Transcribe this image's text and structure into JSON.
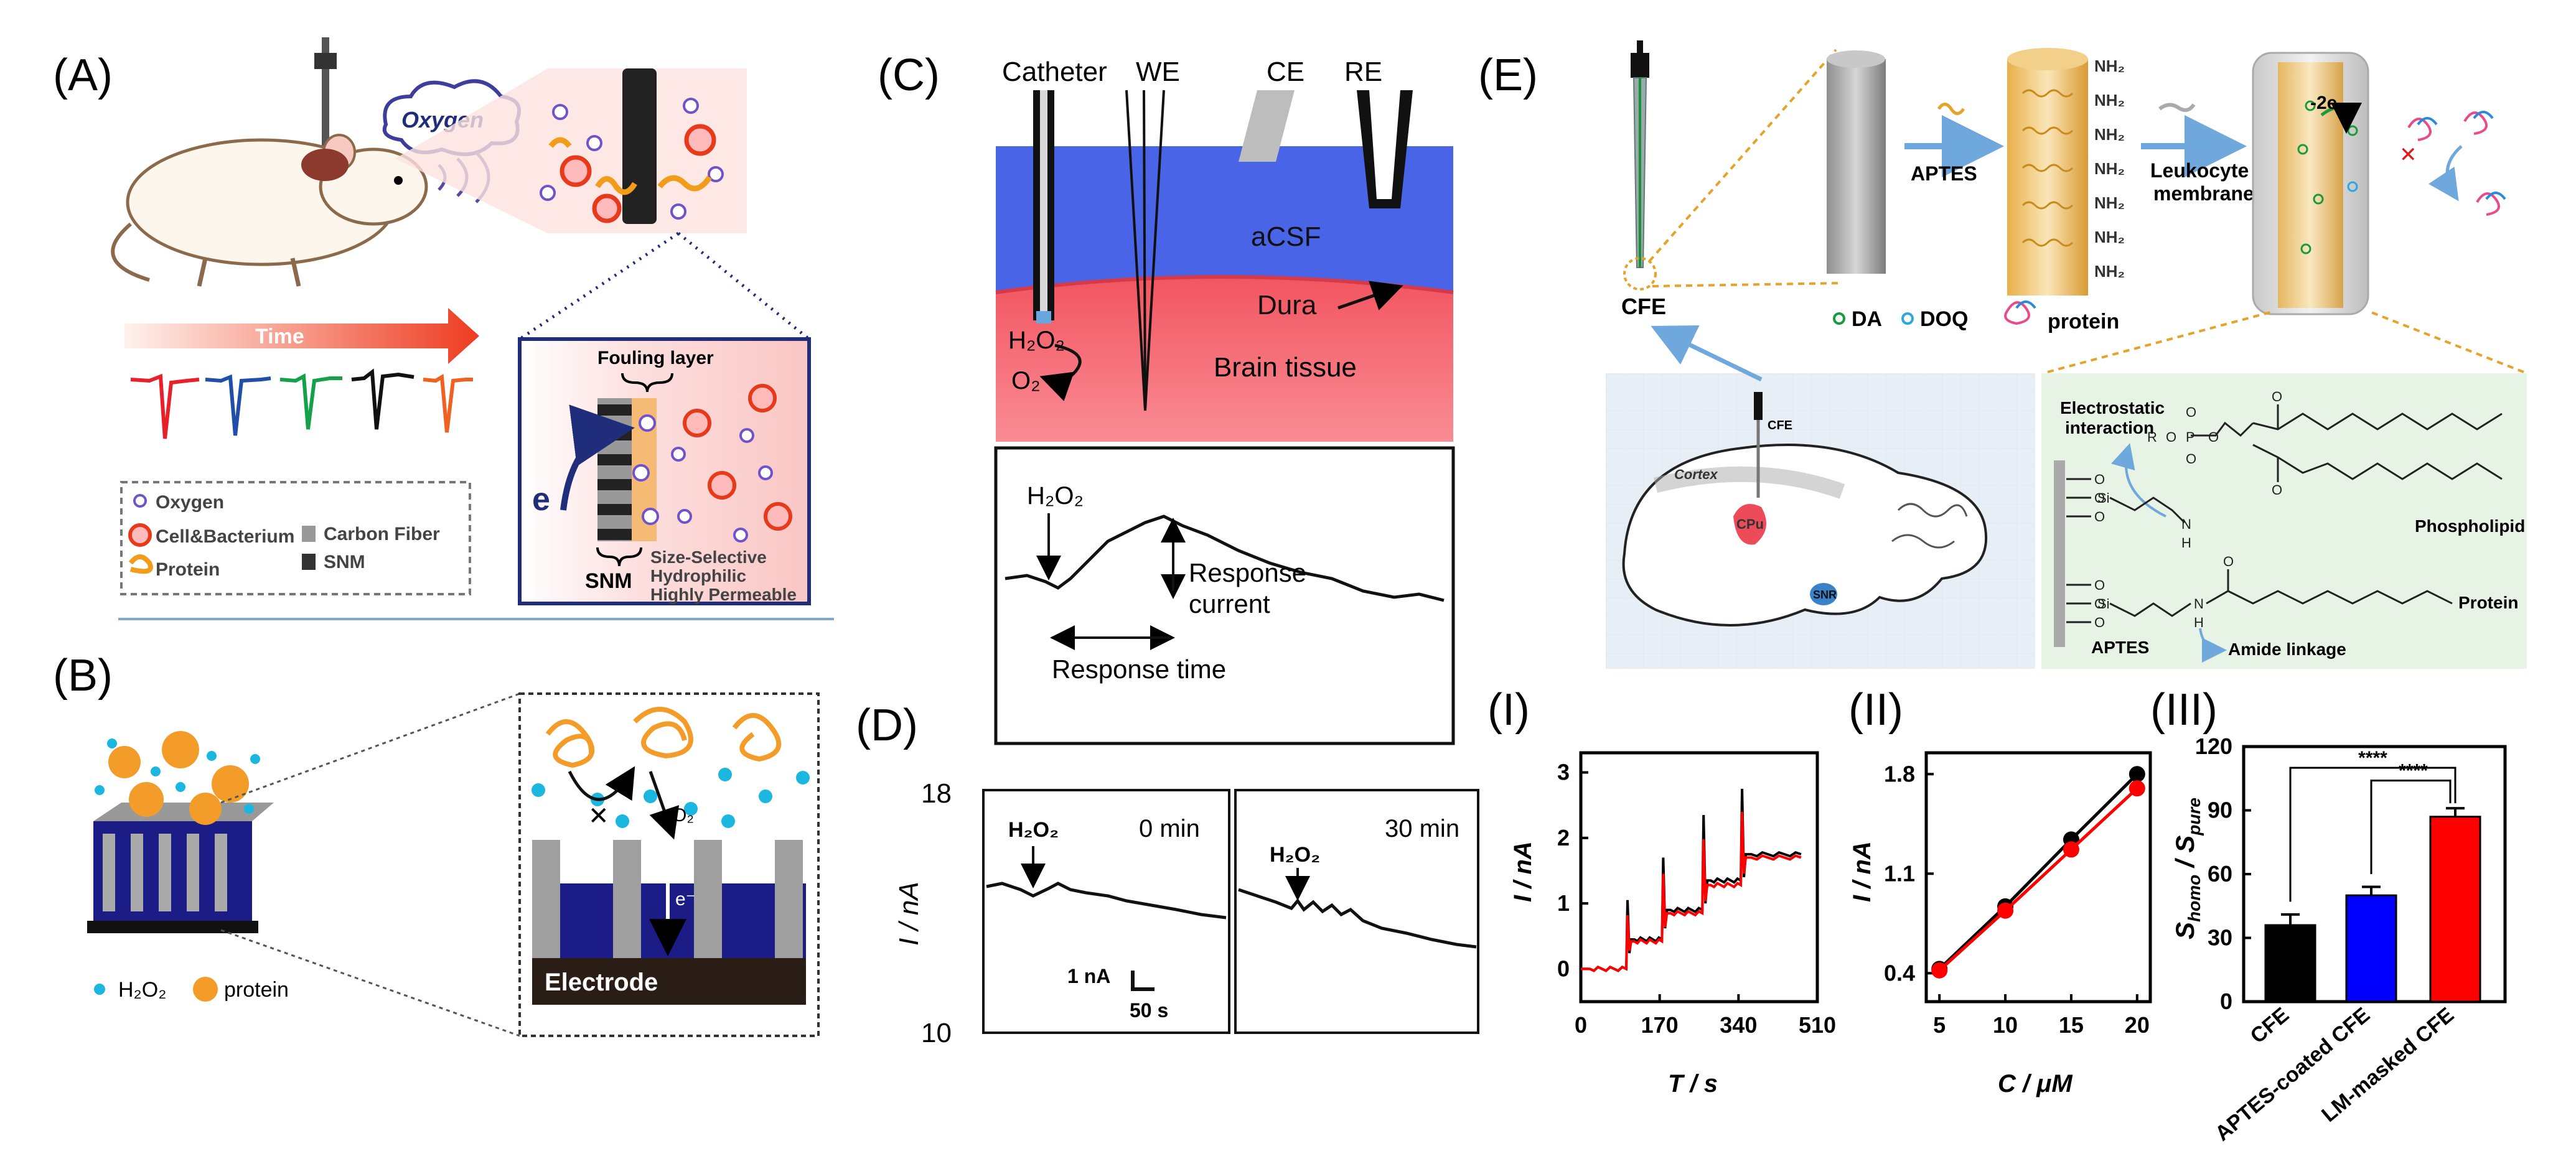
{
  "panels": {
    "A": {
      "label": "(A)",
      "oxygen": "Oxygen",
      "time": "Time",
      "legend": {
        "oxygen": "Oxygen",
        "cell": "Cell&Bacterium",
        "protein": "Protein",
        "carbon_fiber": "Carbon Fiber",
        "snm": "SNM"
      },
      "inset": {
        "fouling": "Fouling layer",
        "electron": "e",
        "snm": "SNM",
        "props": [
          "Size-Selective",
          "Hydrophilic",
          "Highly Permeable"
        ]
      }
    },
    "B": {
      "label": "(B)",
      "legend": {
        "h2o2": "H₂O₂",
        "protein": "protein"
      },
      "inset": {
        "o2": "O₂",
        "electron": "e⁻",
        "electrode": "Electrode"
      }
    },
    "C": {
      "label": "(C)",
      "schematic": {
        "catheter": "Catheter",
        "we": "WE",
        "ce": "CE",
        "re": "RE",
        "acsf": "aCSF",
        "dura": "Dura",
        "h2o2": "H₂O₂",
        "o2": "O₂",
        "brain": "Brain tissue"
      },
      "trace": {
        "h2o2": "H₂O₂",
        "response_current_1": "Response",
        "response_current_2": "current",
        "response_time": "Response time"
      }
    },
    "D": {
      "label": "(D)",
      "ylabel": "I / nA",
      "y_top": "18",
      "y_bottom": "10",
      "left": {
        "time": "0 min",
        "h2o2": "H₂O₂"
      },
      "right": {
        "time": "30 min",
        "h2o2": "H₂O₂"
      },
      "scale_current": "1 nA",
      "scale_time": "50 s"
    },
    "E": {
      "label": "(E)",
      "cfe": "CFE",
      "aptes": "APTES",
      "leukocyte_1": "Leukocyte",
      "leukocyte_2": "membrane",
      "da": "DA",
      "doq": "DOQ",
      "protein": "protein",
      "nh2": "NH₂",
      "minus2e": "-2e",
      "brain": {
        "cfe": "CFE",
        "cortex": "Cortex",
        "cpu": "CPu",
        "snr": "SNR"
      },
      "chem": {
        "electrostatic_1": "Electrostatic",
        "electrostatic_2": "interaction",
        "phospholipid": "Phospholipid",
        "protein": "Protein",
        "aptes": "APTES",
        "amide": "Amide linkage",
        "o": "O",
        "si": "Si",
        "n": "N",
        "h": "H",
        "p": "P",
        "r": "R"
      }
    }
  },
  "chart_data": [
    {
      "type": "line",
      "panel": "(I)",
      "title": "",
      "xlabel": "T / s",
      "ylabel": "I / nA",
      "xlim": [
        0,
        510
      ],
      "ylim": [
        -0.5,
        3.3
      ],
      "x_ticks": [
        0,
        170,
        340,
        510
      ],
      "y_ticks": [
        0,
        1,
        2,
        3
      ],
      "series": [
        {
          "name": "black",
          "color": "#000000",
          "steps": [
            {
              "t0": 0,
              "t1": 98,
              "v": 0
            },
            {
              "t0": 98,
              "t1": 175,
              "v": 0.45
            },
            {
              "t0": 175,
              "t1": 262,
              "v": 0.9
            },
            {
              "t0": 262,
              "t1": 345,
              "v": 1.35
            },
            {
              "t0": 345,
              "t1": 475,
              "v": 1.75
            }
          ],
          "spikes": [
            0.6,
            0.8,
            1.0,
            1.0
          ]
        },
        {
          "name": "red",
          "color": "#ff0000",
          "steps": [
            {
              "t0": 0,
              "t1": 98,
              "v": 0
            },
            {
              "t0": 98,
              "t1": 175,
              "v": 0.42
            },
            {
              "t0": 175,
              "t1": 262,
              "v": 0.85
            },
            {
              "t0": 262,
              "t1": 345,
              "v": 1.28
            },
            {
              "t0": 345,
              "t1": 475,
              "v": 1.7
            }
          ],
          "spikes": [
            0.4,
            0.6,
            0.7,
            0.7
          ]
        }
      ]
    },
    {
      "type": "scatter",
      "panel": "(II)",
      "title": "",
      "xlabel": "C / μM",
      "ylabel": "I / nA",
      "xlim": [
        4,
        21
      ],
      "ylim": [
        0.2,
        1.95
      ],
      "x_ticks": [
        5,
        10,
        15,
        20
      ],
      "y_ticks": [
        0.4,
        1.1,
        1.8
      ],
      "x": [
        5,
        10,
        15,
        20
      ],
      "series": [
        {
          "name": "black",
          "color": "#000000",
          "values": [
            0.43,
            0.87,
            1.34,
            1.8
          ]
        },
        {
          "name": "red",
          "color": "#ff0000",
          "values": [
            0.42,
            0.84,
            1.27,
            1.7
          ]
        }
      ]
    },
    {
      "type": "bar",
      "panel": "(III)",
      "title": "",
      "xlabel": "",
      "ylabel_main": "S",
      "ylabel_sub1": "homo",
      "ylabel_mid": " / S",
      "ylabel_sub2": "pure",
      "ylim": [
        0,
        120
      ],
      "y_ticks": [
        0,
        30,
        60,
        90,
        120
      ],
      "categories": [
        "CFE",
        "APTES-coated CFE",
        "LM-masked CFE"
      ],
      "values": [
        36,
        50,
        87
      ],
      "errors": [
        5,
        4,
        4
      ],
      "colors": [
        "#000000",
        "#0000ff",
        "#ff0000"
      ],
      "significance": [
        "****",
        "****"
      ]
    }
  ]
}
